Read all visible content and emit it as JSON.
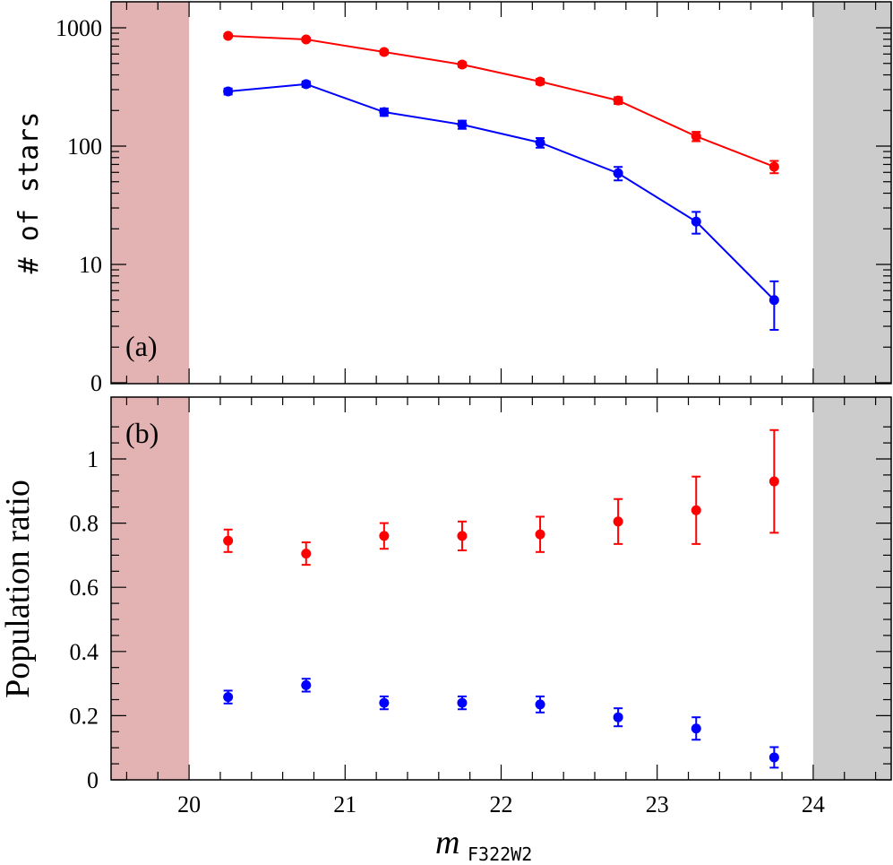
{
  "chart_data": [
    {
      "type": "line",
      "panel_label": "(a)",
      "ylabel": "# of stars",
      "yscale": "log",
      "xlim": [
        19.5,
        24.5
      ],
      "ylim": [
        1,
        1660
      ],
      "yticks": [
        {
          "value": 1000,
          "label": "1000"
        },
        {
          "value": 100,
          "label": "100"
        },
        {
          "value": 10,
          "label": "10"
        },
        {
          "value": 1,
          "label": "0"
        }
      ],
      "shaded_regions": [
        {
          "from": 19.5,
          "to": 20,
          "color": "#e3b3b3"
        },
        {
          "from": 24,
          "to": 24.5,
          "color": "#cccccc"
        }
      ],
      "x": [
        20.25,
        20.75,
        21.25,
        21.75,
        22.25,
        22.75,
        23.25,
        23.75
      ],
      "series": [
        {
          "color": "#ff0000",
          "values": [
            855,
            797,
            624,
            489,
            351,
            243,
            121,
            67
          ],
          "yerr": [
            29,
            28,
            25,
            22,
            19,
            16,
            11,
            8
          ]
        },
        {
          "color": "#0000ff",
          "values": [
            290,
            334,
            194,
            152,
            107,
            59,
            23,
            5
          ],
          "yerr": [
            17,
            18,
            14,
            12,
            10,
            7.7,
            4.8,
            2.2
          ]
        }
      ]
    },
    {
      "type": "scatter",
      "panel_label": "(b)",
      "ylabel": "Population ratio",
      "xlabel": "m",
      "xlabel_subscript": "F322W2",
      "xlim": [
        19.5,
        24.5
      ],
      "ylim": [
        0,
        1.19
      ],
      "xticks": [
        "20",
        "21",
        "22",
        "23",
        "24"
      ],
      "yticks": [
        "0",
        "0.2",
        "0.4",
        "0.6",
        "0.8",
        "1"
      ],
      "shaded_regions": [
        {
          "from": 19.5,
          "to": 20,
          "color": "#e3b3b3"
        },
        {
          "from": 24,
          "to": 24.5,
          "color": "#cccccc"
        }
      ],
      "x": [
        20.25,
        20.75,
        21.25,
        21.75,
        22.25,
        22.75,
        23.25,
        23.75
      ],
      "series": [
        {
          "color": "#ff0000",
          "values": [
            0.745,
            0.705,
            0.76,
            0.76,
            0.765,
            0.805,
            0.84,
            0.93
          ],
          "yerr": [
            0.035,
            0.035,
            0.04,
            0.045,
            0.055,
            0.07,
            0.105,
            0.16
          ]
        },
        {
          "color": "#0000ff",
          "values": [
            0.258,
            0.295,
            0.24,
            0.24,
            0.235,
            0.195,
            0.16,
            0.07
          ],
          "yerr": [
            0.02,
            0.02,
            0.02,
            0.02,
            0.025,
            0.028,
            0.035,
            0.032
          ]
        }
      ]
    }
  ]
}
